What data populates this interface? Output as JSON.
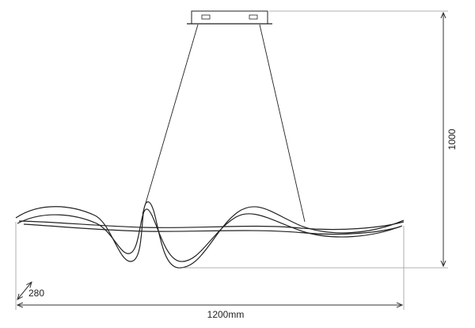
{
  "dimensions": {
    "height": "1000",
    "depth": "280",
    "width": "1200mm"
  }
}
